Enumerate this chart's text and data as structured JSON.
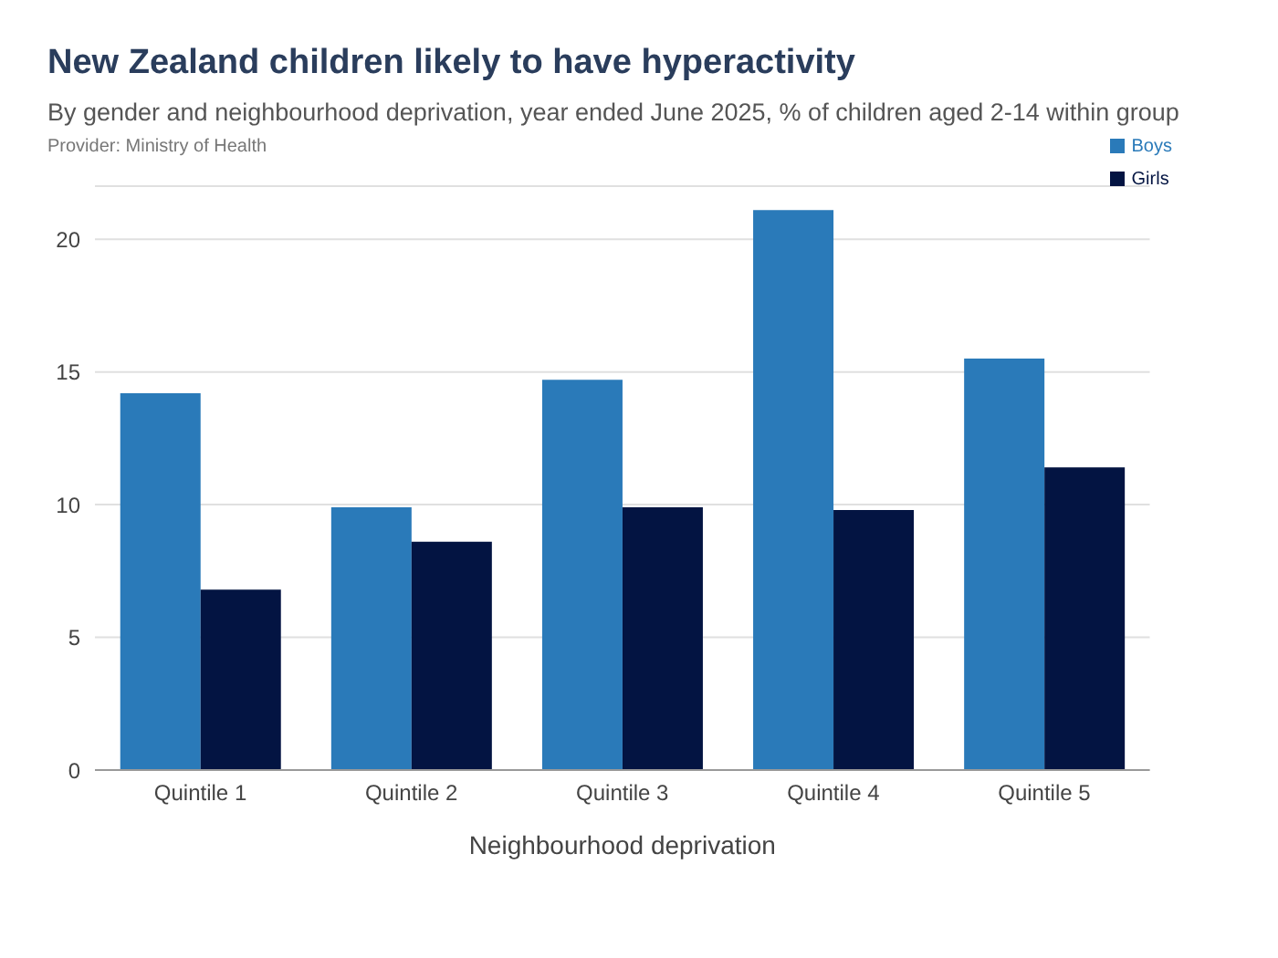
{
  "chart_data": {
    "type": "bar",
    "title": "New Zealand children likely to have hyperactivity",
    "subtitle": "By gender and neighbourhood deprivation, year ended June 2025, % of children aged 2-14 within group",
    "annotations": [
      "Provider: Ministry of Health"
    ],
    "xlabel": "Neighbourhood deprivation",
    "categories": [
      "Quintile 1",
      "Quintile 2",
      "Quintile 3",
      "Quintile 4",
      "Quintile 5"
    ],
    "series": [
      {
        "name": "Boys",
        "color": "#2a7ab9",
        "values": [
          14.2,
          9.9,
          14.7,
          21.1,
          15.5
        ]
      },
      {
        "name": "Girls",
        "color": "#031442",
        "values": [
          6.8,
          8.6,
          9.9,
          9.8,
          11.4
        ]
      }
    ],
    "ylim": [
      0,
      22
    ],
    "yticks": [
      0,
      5,
      10,
      15,
      20
    ],
    "grid": "y",
    "legend": "top right"
  }
}
